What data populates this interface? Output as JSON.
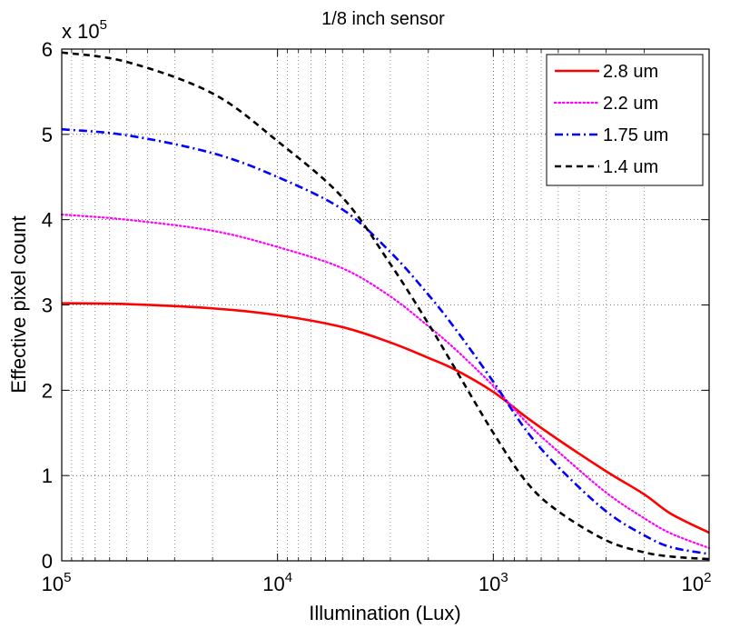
{
  "chart_data": {
    "type": "line",
    "title": "1/8 inch sensor",
    "xlabel": "Illumination (Lux)",
    "ylabel": "Effective pixel count",
    "x_scale": "log",
    "x_reversed": true,
    "xlim": [
      100000,
      100
    ],
    "x_ticks": [
      {
        "value": 100000,
        "base": "10",
        "exp": "5"
      },
      {
        "value": 10000,
        "base": "10",
        "exp": "4"
      },
      {
        "value": 1000,
        "base": "10",
        "exp": "3"
      },
      {
        "value": 100,
        "base": "10",
        "exp": "2"
      }
    ],
    "ylim": [
      0,
      6
    ],
    "y_ticks": [
      "0",
      "1",
      "2",
      "3",
      "4",
      "5",
      "6"
    ],
    "y_multiplier": {
      "base": "x 10",
      "exp": "5"
    },
    "grid": true,
    "legend_position": "top-right",
    "x": [
      100000,
      50000,
      20000,
      10000,
      5000,
      3000,
      2000,
      1500,
      1000,
      700,
      500,
      300,
      200,
      150,
      100
    ],
    "series": [
      {
        "name": "2.8 um",
        "color": "#ff0000",
        "style": "solid",
        "values": [
          3.02,
          3.01,
          2.96,
          2.88,
          2.74,
          2.56,
          2.38,
          2.24,
          1.98,
          1.68,
          1.42,
          1.05,
          0.78,
          0.55,
          0.33
        ]
      },
      {
        "name": "2.2 um",
        "color": "#ff00ff",
        "style": "dotted",
        "values": [
          4.06,
          4.0,
          3.87,
          3.68,
          3.43,
          3.1,
          2.75,
          2.48,
          2.05,
          1.62,
          1.28,
          0.8,
          0.5,
          0.32,
          0.15
        ]
      },
      {
        "name": "1.75 um",
        "color": "#0000ff",
        "style": "dashdot",
        "values": [
          5.06,
          4.99,
          4.78,
          4.5,
          4.12,
          3.62,
          3.12,
          2.72,
          2.1,
          1.52,
          1.1,
          0.58,
          0.3,
          0.16,
          0.08
        ]
      },
      {
        "name": "1.4 um",
        "color": "#000000",
        "style": "dashed",
        "values": [
          5.96,
          5.85,
          5.48,
          4.92,
          4.26,
          3.48,
          2.78,
          2.25,
          1.5,
          0.92,
          0.58,
          0.24,
          0.1,
          0.05,
          0.02
        ]
      }
    ]
  }
}
